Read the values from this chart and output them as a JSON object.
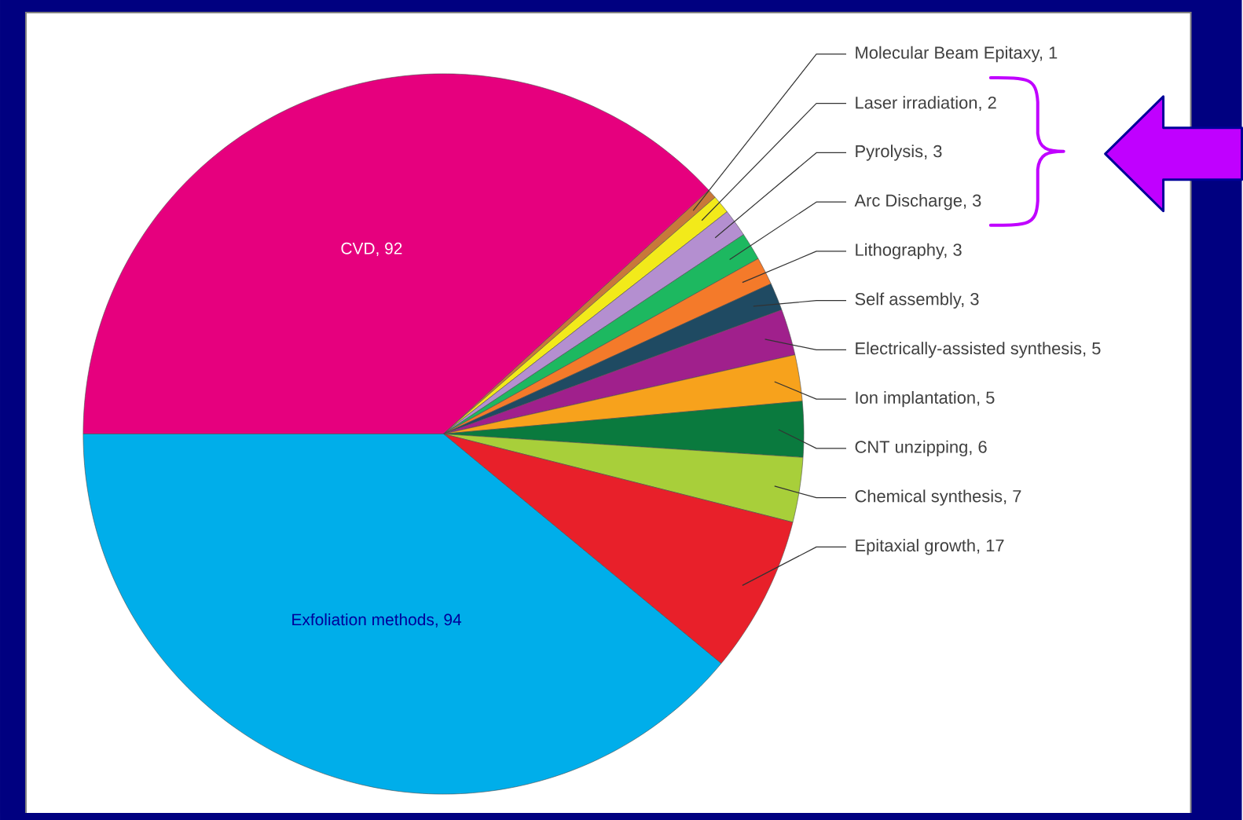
{
  "chart_data": {
    "type": "pie",
    "categories": [
      "CVD, 92",
      "Molecular Beam Epitaxy, 1",
      "Laser irradiation, 2",
      "Pyrolysis, 3",
      "Arc Discharge, 3",
      "Lithography, 3",
      "Self assembly, 3",
      "Electrically-assisted synthesis, 5",
      "Ion implantation, 5",
      "CNT unzipping, 6",
      "Chemical synthesis, 7",
      "Epitaxial growth, 17",
      "Exfoliation methods, 94"
    ],
    "values": [
      92,
      1,
      2,
      3,
      3,
      3,
      3,
      5,
      5,
      6,
      7,
      17,
      94
    ],
    "colors": [
      "#e6007e",
      "#c8783a",
      "#f2ea1a",
      "#b48fd0",
      "#1db860",
      "#f47a2a",
      "#1f4a62",
      "#a0208c",
      "#f7a21c",
      "#0a7a3e",
      "#a8cf3a",
      "#e8202a",
      "#00aeea"
    ]
  }
}
